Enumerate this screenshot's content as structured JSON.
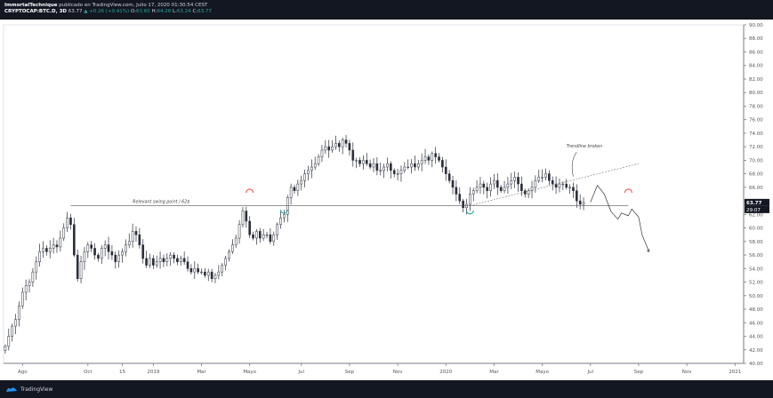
{
  "header": {
    "user": "ImmortalTechnique",
    "published_text": "publicado en TradingView.com, Julio 17, 2020 01:30:54 CEST",
    "symbol": "CRYPTOCAP:BTC.D, 3D",
    "last": "63.77",
    "change": "▲ +0.26 (+0.41%)",
    "o_label": "O:",
    "o_val": "63.60",
    "h_label": "H:",
    "h_val": "64.28",
    "l_label": "L:",
    "l_val": "63.24",
    "c_label": "C:",
    "c_val": "63.77"
  },
  "footer": {
    "brand": "TradingView"
  },
  "colors": {
    "up": "#26a69a",
    "down": "#333333",
    "support_green": "#26a69a",
    "resistance_red": "#ef5350",
    "background_dark": "#131722"
  },
  "chart_data": {
    "type": "line",
    "ylim": [
      40,
      90
    ],
    "yticks": [
      "90.00",
      "88.00",
      "86.00",
      "84.00",
      "82.00",
      "80.00",
      "78.00",
      "76.00",
      "74.00",
      "72.00",
      "70.00",
      "68.00",
      "66.00",
      "64.00",
      "62.00",
      "60.00",
      "58.00",
      "56.00",
      "54.00",
      "52.00",
      "50.00",
      "48.00",
      "46.00",
      "44.00",
      "42.00",
      "40.00"
    ],
    "last_price_label": "63.77",
    "countdown_label": "29:07",
    "xticks": [
      {
        "label": "Ago",
        "i": 5
      },
      {
        "label": "Oct",
        "i": 24
      },
      {
        "label": "15",
        "i": 34
      },
      {
        "label": "2019",
        "i": 43
      },
      {
        "label": "Mar",
        "i": 57
      },
      {
        "label": "Mayo",
        "i": 71
      },
      {
        "label": "Jul",
        "i": 86
      },
      {
        "label": "Sep",
        "i": 100
      },
      {
        "label": "Nov",
        "i": 114
      },
      {
        "label": "2020",
        "i": 128
      },
      {
        "label": "Mar",
        "i": 142
      },
      {
        "label": "Mayo",
        "i": 156
      },
      {
        "label": "Jul",
        "i": 170
      },
      {
        "label": "Sep",
        "i": 184
      },
      {
        "label": "Nov",
        "i": 198
      },
      {
        "label": "2021",
        "i": 212
      }
    ],
    "series": [
      {
        "values": [
          42.5,
          44.0,
          45.5,
          46.5,
          48.5,
          50.5,
          51.5,
          52.0,
          53.5,
          55.0,
          56.5,
          57.0,
          56.5,
          57.0,
          57.5,
          57.2,
          58.5,
          60.0,
          61.5,
          60.5,
          56.0,
          52.5,
          55.0,
          56.5,
          57.5,
          57.0,
          56.0,
          55.5,
          57.0,
          57.5,
          56.5,
          56.0,
          55.0,
          56.0,
          56.5,
          57.5,
          58.0,
          59.5,
          59.0,
          57.5,
          55.5,
          54.5,
          55.5,
          54.5,
          55.0,
          55.5,
          55.0,
          55.5,
          56.0,
          55.5,
          55.0,
          55.5,
          55.0,
          54.0,
          53.5,
          54.0,
          53.5,
          53.5,
          53.0,
          53.5,
          52.5,
          53.0,
          53.5,
          54.5,
          55.5,
          56.5,
          57.5,
          58.5,
          60.5,
          62.5,
          61.0,
          59.0,
          58.5,
          59.5,
          58.5,
          59.0,
          59.0,
          58.0,
          59.0,
          60.5,
          61.5,
          62.0,
          64.5,
          66.0,
          65.5,
          66.5,
          67.0,
          68.0,
          68.5,
          69.0,
          69.5,
          70.5,
          71.5,
          72.0,
          71.5,
          72.0,
          72.5,
          72.0,
          73.0,
          72.5,
          71.5,
          70.0,
          70.0,
          69.5,
          70.0,
          69.5,
          69.0,
          69.5,
          68.5,
          68.5,
          69.0,
          69.5,
          68.5,
          68.0,
          68.0,
          68.5,
          69.0,
          69.0,
          69.5,
          69.0,
          69.5,
          70.0,
          70.5,
          70.0,
          71.0,
          70.5,
          70.0,
          69.0,
          68.0,
          67.0,
          66.0,
          65.0,
          64.0,
          63.0,
          63.5,
          65.0,
          65.5,
          66.0,
          66.5,
          66.0,
          65.5,
          66.5,
          67.0,
          66.0,
          65.5,
          66.0,
          66.5,
          67.0,
          67.5,
          66.5,
          65.5,
          65.0,
          65.5,
          66.0,
          67.0,
          67.5,
          67.5,
          68.0,
          67.0,
          66.5,
          66.0,
          66.5,
          66.5,
          66.0,
          66.0,
          65.5,
          64.0,
          63.5,
          63.77
        ]
      }
    ],
    "annotations": {
      "swing_label": "Relevant swing point / 62$",
      "trendline_label": "Trendline broken",
      "swing_level": 63.3
    }
  }
}
